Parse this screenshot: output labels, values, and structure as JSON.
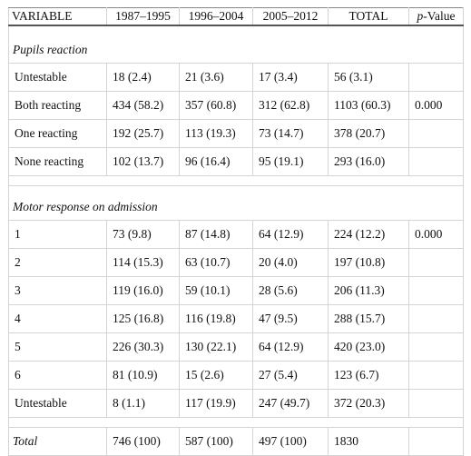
{
  "table": {
    "header": [
      "VARIABLE",
      "1987–1995",
      "1996–2004",
      "2005–2012",
      "TOTAL",
      {
        "italic": "p",
        "text": "-Value"
      }
    ],
    "sections": [
      {
        "title": "Pupils reaction",
        "rows": [
          [
            "Untestable",
            "18 (2.4)",
            "21 (3.6)",
            "17 (3.4)",
            "56 (3.1)"
          ],
          [
            "Both reacting",
            "434 (58.2)",
            "357 (60.8)",
            "312 (62.8)",
            "1103 (60.3)",
            "0.000"
          ],
          [
            "One reacting",
            "192 (25.7)",
            "113 (19.3)",
            "73 (14.7)",
            "378 (20.7)"
          ],
          [
            "None reacting",
            "102 (13.7)",
            "96 (16.4)",
            "95 (19.1)",
            "293 (16.0)"
          ]
        ]
      },
      {
        "title": "Motor response on admission",
        "rows": [
          [
            "1",
            "73 (9.8)",
            "87 (14.8)",
            "64 (12.9)",
            "224 (12.2)",
            "0.000"
          ],
          [
            "2",
            "114 (15.3)",
            "63 (10.7)",
            "20 (4.0)",
            "197 (10.8)"
          ],
          [
            "3",
            "119 (16.0)",
            "59 (10.1)",
            "28 (5.6)",
            "206 (11.3)"
          ],
          [
            "4",
            "125 (16.8)",
            "116 (19.8)",
            "47 (9.5)",
            "288 (15.7)"
          ],
          [
            "5",
            "226 (30.3)",
            "130 (22.1)",
            "64 (12.9)",
            "420 (23.0)"
          ],
          [
            "6",
            "81 (10.9)",
            "15 (2.6)",
            "27 (5.4)",
            "123 (6.7)"
          ],
          [
            "Untestable",
            "8 (1.1)",
            "117 (19.9)",
            "247 (49.7)",
            "372 (20.3)"
          ]
        ]
      }
    ],
    "total": [
      "Total",
      "746 (100)",
      "587 (100)",
      "497 (100)",
      "1830"
    ]
  }
}
